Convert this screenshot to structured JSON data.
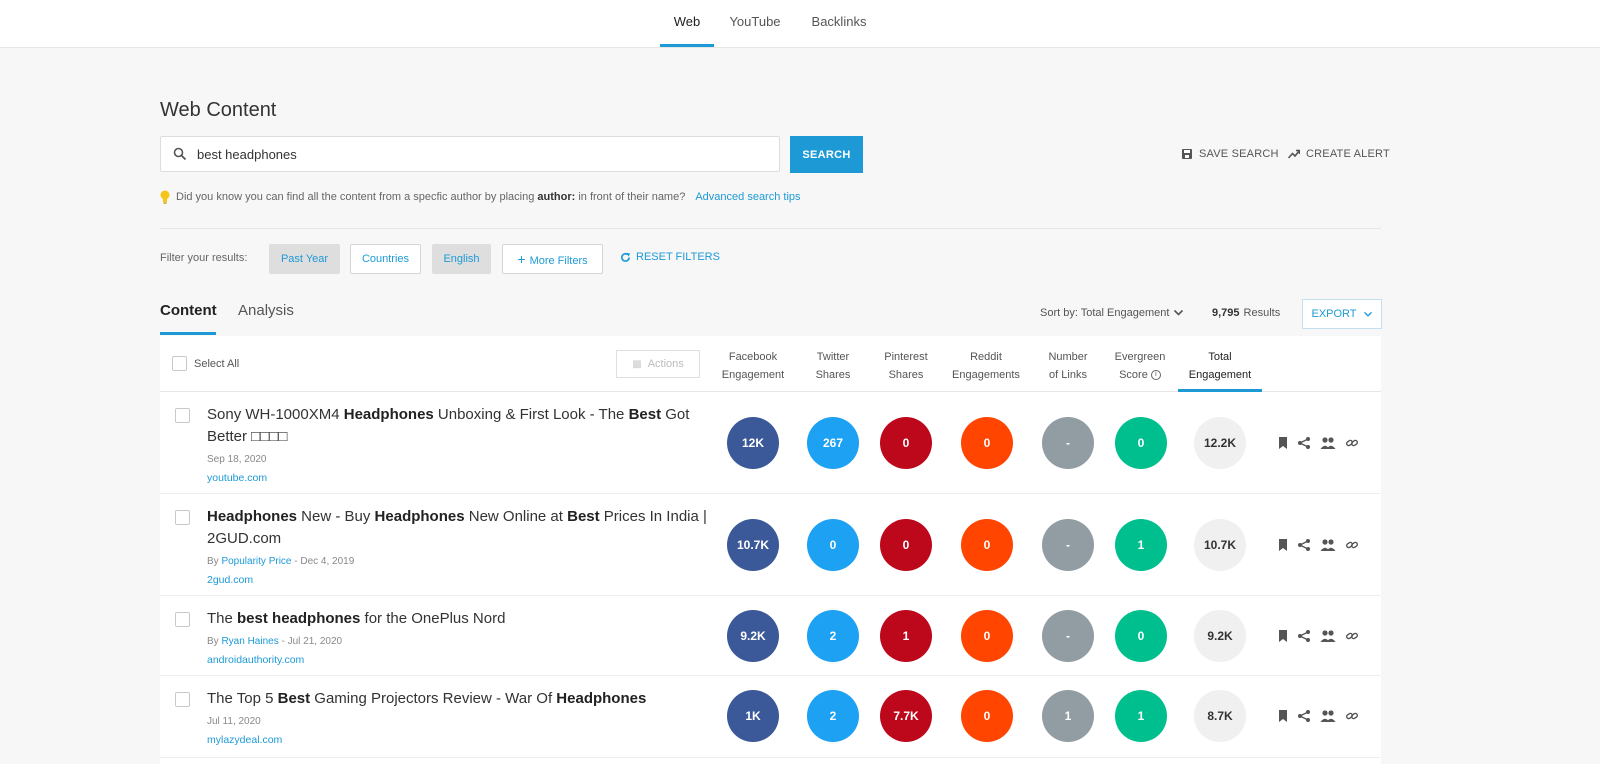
{
  "topnav": {
    "tabs": [
      "Web",
      "YouTube",
      "Backlinks"
    ],
    "active": 0
  },
  "page_title": "Web Content",
  "search": {
    "value": "best headphones",
    "button": "SEARCH"
  },
  "actions": {
    "save_search": "SAVE SEARCH",
    "create_alert": "CREATE ALERT"
  },
  "tip": {
    "before": "Did you know you can find all the content from a specfic author by placing",
    "keyword": "author:",
    "after": "in front of their name?",
    "link": "Advanced search tips"
  },
  "filters": {
    "label": "Filter your results:",
    "past_year": "Past Year",
    "countries": "Countries",
    "english": "English",
    "more": "More Filters",
    "reset": "RESET FILTERS"
  },
  "content_tabs": {
    "content": "Content",
    "analysis": "Analysis"
  },
  "sort": {
    "label": "Sort by: Total Engagement",
    "count": "9,795",
    "results": "Results",
    "export": "EXPORT"
  },
  "table": {
    "select_all": "Select All",
    "actions": "Actions",
    "headers": [
      [
        "Facebook",
        "Engagement"
      ],
      [
        "Twitter",
        "Shares"
      ],
      [
        "Pinterest",
        "Shares"
      ],
      [
        "Reddit",
        "Engagements"
      ],
      [
        "Number",
        "of Links"
      ],
      [
        "Evergreen",
        "Score"
      ],
      [
        "Total",
        "Engagement"
      ]
    ],
    "rows": [
      {
        "title_parts": [
          [
            "Sony WH-1000XM4 ",
            false
          ],
          [
            "Headphones",
            true
          ],
          [
            " Unboxing & First Look - The ",
            false
          ],
          [
            "Best",
            true
          ],
          [
            " Got Better □□□□",
            false
          ]
        ],
        "author": "",
        "date": "Sep 18, 2020",
        "domain": "youtube.com",
        "values": [
          "12K",
          "267",
          "0",
          "0",
          "-",
          "0",
          "12.2K"
        ]
      },
      {
        "title_parts": [
          [
            "Headphones",
            true
          ],
          [
            " New - Buy ",
            false
          ],
          [
            "Headphones",
            true
          ],
          [
            " New Online at ",
            false
          ],
          [
            "Best",
            true
          ],
          [
            " Prices In India | 2GUD.com",
            false
          ]
        ],
        "author": "Popularity Price",
        "date": "Dec 4, 2019",
        "domain": "2gud.com",
        "values": [
          "10.7K",
          "0",
          "0",
          "0",
          "-",
          "1",
          "10.7K"
        ]
      },
      {
        "title_parts": [
          [
            "The ",
            false
          ],
          [
            "best headphones",
            true
          ],
          [
            " for the OnePlus Nord",
            false
          ]
        ],
        "author": "Ryan Haines",
        "date": "Jul 21, 2020",
        "domain": "androidauthority.com",
        "values": [
          "9.2K",
          "2",
          "1",
          "0",
          "-",
          "0",
          "9.2K"
        ]
      },
      {
        "title_parts": [
          [
            "The Top 5 ",
            false
          ],
          [
            "Best",
            true
          ],
          [
            " Gaming Projectors Review - War Of ",
            false
          ],
          [
            "Headphones",
            true
          ]
        ],
        "author": "",
        "date": "Jul 11, 2020",
        "domain": "mylazydeal.com",
        "values": [
          "1K",
          "2",
          "7.7K",
          "0",
          "1",
          "1",
          "8.7K"
        ]
      }
    ]
  },
  "icons": [
    "search-icon",
    "save-icon",
    "trend-icon",
    "lightbulb-icon",
    "plus-icon",
    "refresh-icon",
    "chevron-down-icon",
    "info-icon",
    "bookmark-icon",
    "share-icon",
    "people-icon",
    "link-icon"
  ],
  "colors": {
    "accent": "#1d9ad6",
    "facebook": "#3b5998",
    "twitter": "#1da1f2",
    "pinterest": "#bd081c",
    "reddit": "#ff4500",
    "links": "#919ca3",
    "evergreen": "#00bf8f",
    "total": "#f0f0f0"
  }
}
